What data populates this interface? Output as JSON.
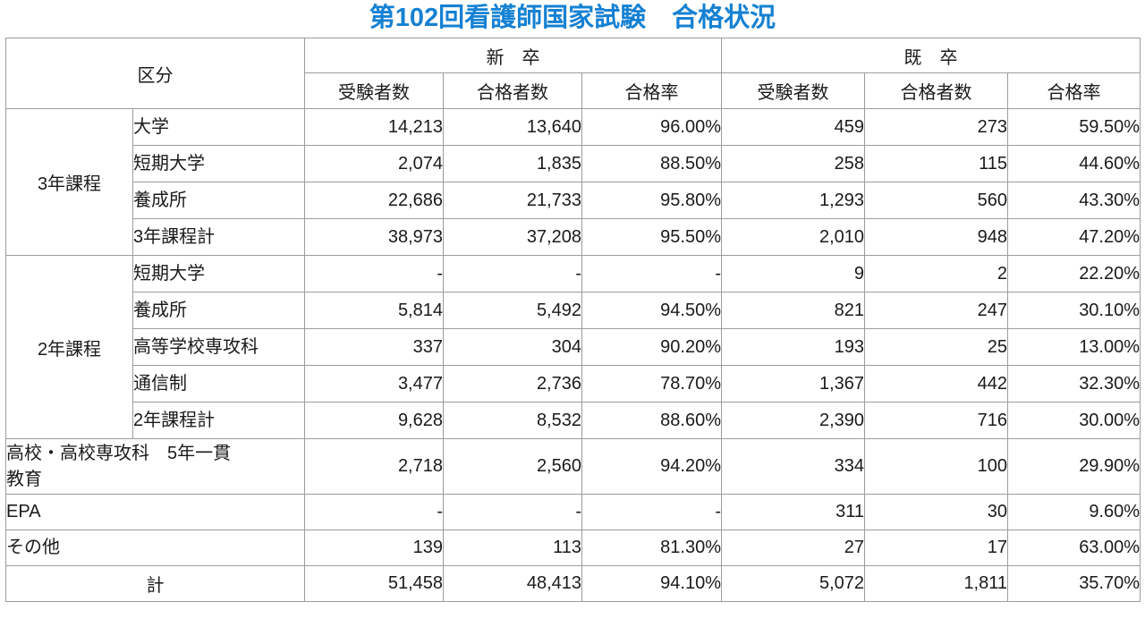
{
  "title": "第102回看護師国家試験　合格状況",
  "title_color": "#1581d3",
  "border_color": "#9c9c9c",
  "table": {
    "corner_header": "区分",
    "group_headers": [
      "新　卒",
      "既　卒"
    ],
    "sub_headers": [
      "受験者数",
      "合格者数",
      "合格率",
      "受験者数",
      "合格者数",
      "合格率"
    ],
    "groups": [
      {
        "label": "3年課程",
        "rows": [
          {
            "label": "大学",
            "values": [
              "14,213",
              "13,640",
              "96.00%",
              "459",
              "273",
              "59.50%"
            ]
          },
          {
            "label": "短期大学",
            "values": [
              "2,074",
              "1,835",
              "88.50%",
              "258",
              "115",
              "44.60%"
            ]
          },
          {
            "label": "養成所",
            "values": [
              "22,686",
              "21,733",
              "95.80%",
              "1,293",
              "560",
              "43.30%"
            ]
          },
          {
            "label": "3年課程計",
            "values": [
              "38,973",
              "37,208",
              "95.50%",
              "2,010",
              "948",
              "47.20%"
            ]
          }
        ]
      },
      {
        "label": "2年課程",
        "rows": [
          {
            "label": "短期大学",
            "values": [
              "-",
              "-",
              "-",
              "9",
              "2",
              "22.20%"
            ]
          },
          {
            "label": "養成所",
            "values": [
              "5,814",
              "5,492",
              "94.50%",
              "821",
              "247",
              "30.10%"
            ]
          },
          {
            "label": "高等学校専攻科",
            "values": [
              "337",
              "304",
              "90.20%",
              "193",
              "25",
              "13.00%"
            ]
          },
          {
            "label": "通信制",
            "values": [
              "3,477",
              "2,736",
              "78.70%",
              "1,367",
              "442",
              "32.30%"
            ]
          },
          {
            "label": "2年課程計",
            "values": [
              "9,628",
              "8,532",
              "88.60%",
              "2,390",
              "716",
              "30.00%"
            ]
          }
        ]
      }
    ],
    "flat_rows": [
      {
        "label": "高校・高校専攻科　5年一貫\n教育",
        "tall": true,
        "values": [
          "2,718",
          "2,560",
          "94.20%",
          "334",
          "100",
          "29.90%"
        ]
      },
      {
        "label": "EPA",
        "tall": false,
        "values": [
          "-",
          "-",
          "-",
          "311",
          "30",
          "9.60%"
        ]
      },
      {
        "label": "その他",
        "tall": false,
        "values": [
          "139",
          "113",
          "81.30%",
          "27",
          "17",
          "63.00%"
        ]
      }
    ],
    "total_row": {
      "label": "計",
      "values": [
        "51,458",
        "48,413",
        "94.10%",
        "5,072",
        "1,811",
        "35.70%"
      ]
    }
  },
  "chart_data": {
    "type": "table",
    "title": "第102回看護師国家試験　合格状況",
    "columns": [
      "区分",
      "新卒 受験者数",
      "新卒 合格者数",
      "新卒 合格率",
      "既卒 受験者数",
      "既卒 合格者数",
      "既卒 合格率"
    ],
    "rows": [
      [
        "3年課程 大学",
        14213,
        13640,
        "96.00%",
        459,
        273,
        "59.50%"
      ],
      [
        "3年課程 短期大学",
        2074,
        1835,
        "88.50%",
        258,
        115,
        "44.60%"
      ],
      [
        "3年課程 養成所",
        22686,
        21733,
        "95.80%",
        1293,
        560,
        "43.30%"
      ],
      [
        "3年課程計",
        38973,
        37208,
        "95.50%",
        2010,
        948,
        "47.20%"
      ],
      [
        "2年課程 短期大学",
        "-",
        "-",
        "-",
        9,
        2,
        "22.20%"
      ],
      [
        "2年課程 養成所",
        5814,
        5492,
        "94.50%",
        821,
        247,
        "30.10%"
      ],
      [
        "2年課程 高等学校専攻科",
        337,
        304,
        "90.20%",
        193,
        25,
        "13.00%"
      ],
      [
        "2年課程 通信制",
        3477,
        2736,
        "78.70%",
        1367,
        442,
        "32.30%"
      ],
      [
        "2年課程計",
        9628,
        8532,
        "88.60%",
        2390,
        716,
        "30.00%"
      ],
      [
        "高校・高校専攻科　5年一貫教育",
        2718,
        2560,
        "94.20%",
        334,
        100,
        "29.90%"
      ],
      [
        "EPA",
        "-",
        "-",
        "-",
        311,
        30,
        "9.60%"
      ],
      [
        "その他",
        139,
        113,
        "81.30%",
        27,
        17,
        "63.00%"
      ],
      [
        "計",
        51458,
        48413,
        "94.10%",
        5072,
        1811,
        "35.70%"
      ]
    ]
  }
}
